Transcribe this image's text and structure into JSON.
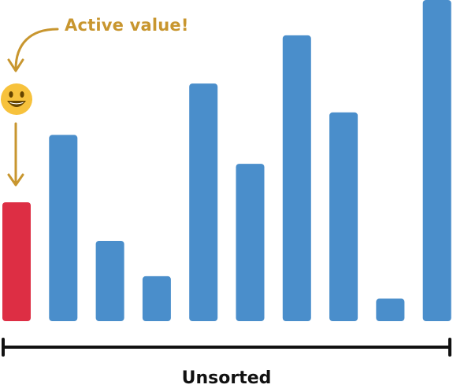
{
  "chart_data": {
    "type": "bar",
    "title": "",
    "xlabel": "Unsorted",
    "ylabel": "",
    "ylim": [
      0,
      100
    ],
    "grid": false,
    "legend": "none",
    "values": [
      37,
      58,
      25,
      14,
      74,
      49,
      89,
      65,
      7,
      100
    ],
    "active_index": 0,
    "annotation": "Active value!",
    "colors": {
      "bar": "#4a8ecb",
      "active_bar": "#dd2e44",
      "annotation": "#c8962f",
      "axis": "#111111",
      "emoji_face": "#f7c23c",
      "emoji_feature": "#664500"
    },
    "marker_icon": "smiley-face-icon"
  }
}
